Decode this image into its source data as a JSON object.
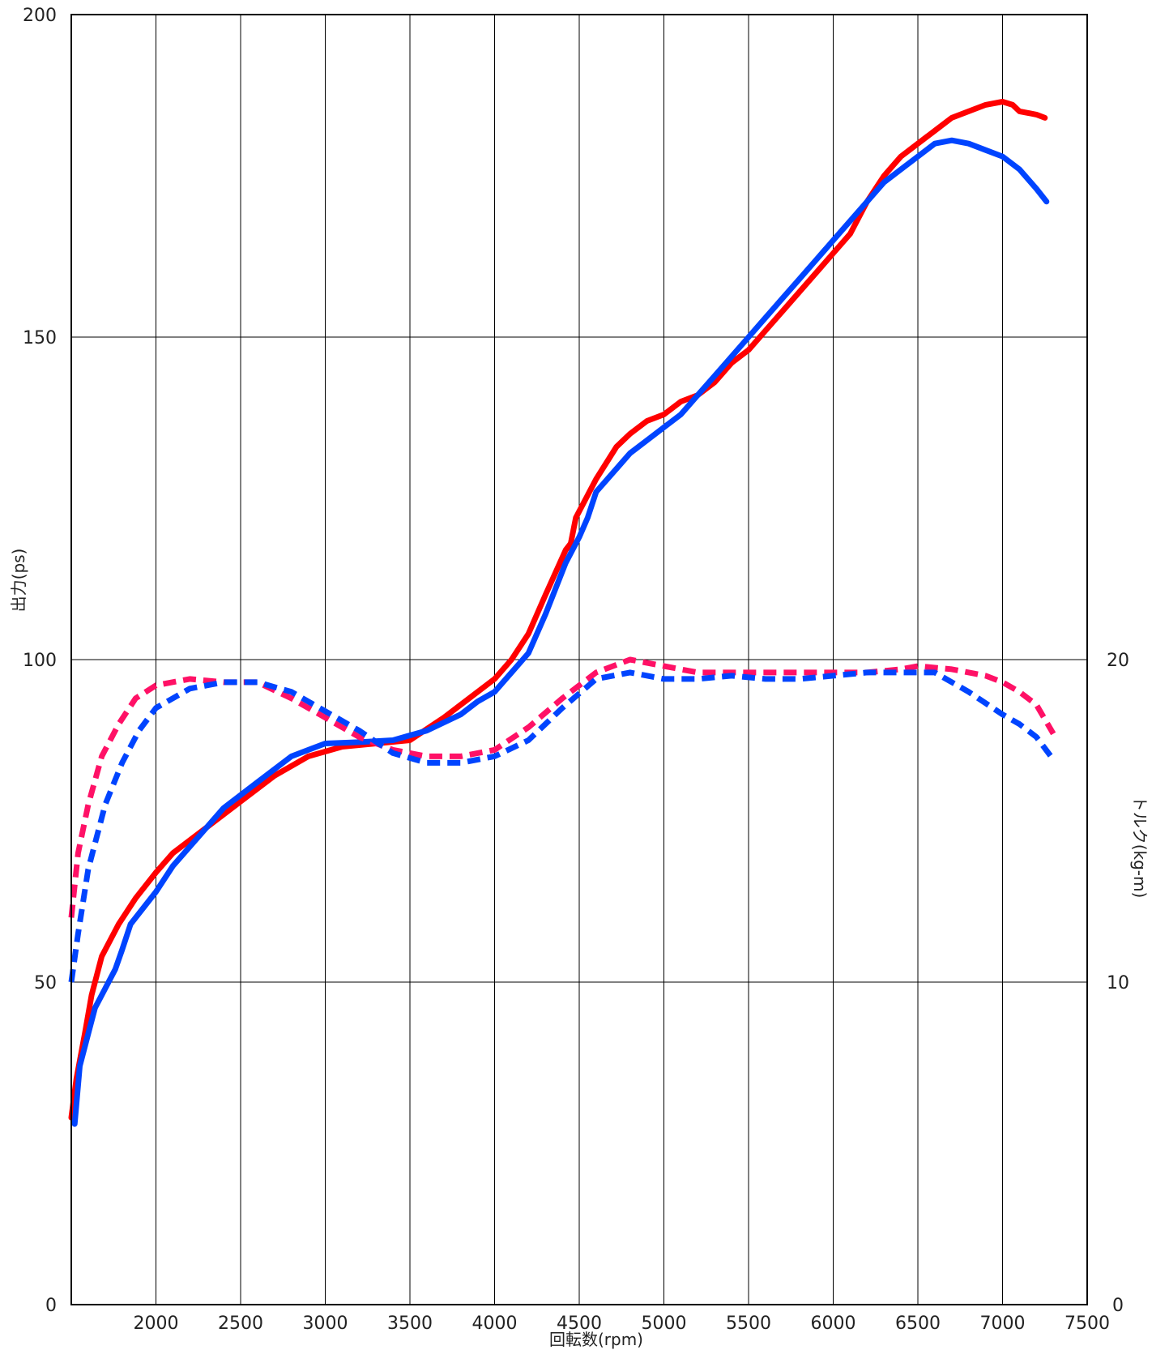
{
  "chart_data": {
    "type": "line",
    "xlabel": "回転数(rpm)",
    "ylabel_left": "出力(ps)",
    "ylabel_right": "トルク(kg-m)",
    "xlim": [
      1500,
      7500
    ],
    "ylim_left": [
      0,
      200
    ],
    "ylim_right": [
      0,
      40
    ],
    "x_ticks": [
      "2000",
      "2500",
      "3000",
      "3500",
      "4000",
      "4500",
      "5000",
      "5500",
      "6000",
      "6500",
      "7000",
      "7500"
    ],
    "y_left_ticks": [
      "0",
      "50",
      "100",
      "150",
      "200"
    ],
    "y_right_ticks": [
      "0",
      "10",
      "20"
    ],
    "grid": true,
    "series": [
      {
        "axis": "left",
        "style": "solid",
        "color": "#ff0000",
        "points": [
          [
            1500,
            29
          ],
          [
            1530,
            35
          ],
          [
            1580,
            42
          ],
          [
            1620,
            48
          ],
          [
            1680,
            54
          ],
          [
            1780,
            59
          ],
          [
            1880,
            63
          ],
          [
            2000,
            67
          ],
          [
            2100,
            70
          ],
          [
            2300,
            74
          ],
          [
            2500,
            78
          ],
          [
            2700,
            82
          ],
          [
            2900,
            85
          ],
          [
            3100,
            86.5
          ],
          [
            3300,
            87
          ],
          [
            3500,
            87.5
          ],
          [
            3700,
            91
          ],
          [
            3850,
            94
          ],
          [
            4000,
            97
          ],
          [
            4100,
            100
          ],
          [
            4200,
            104
          ],
          [
            4300,
            110
          ],
          [
            4420,
            117
          ],
          [
            4450,
            118
          ],
          [
            4480,
            122
          ],
          [
            4600,
            128
          ],
          [
            4720,
            133
          ],
          [
            4800,
            135
          ],
          [
            4900,
            137
          ],
          [
            5000,
            138
          ],
          [
            5100,
            140
          ],
          [
            5200,
            141
          ],
          [
            5300,
            143
          ],
          [
            5400,
            146
          ],
          [
            5500,
            148
          ],
          [
            5600,
            151
          ],
          [
            5700,
            154
          ],
          [
            5800,
            157
          ],
          [
            5900,
            160
          ],
          [
            6000,
            163
          ],
          [
            6100,
            166
          ],
          [
            6200,
            171
          ],
          [
            6300,
            175
          ],
          [
            6400,
            178
          ],
          [
            6500,
            180
          ],
          [
            6600,
            182
          ],
          [
            6700,
            184
          ],
          [
            6800,
            185
          ],
          [
            6900,
            186
          ],
          [
            7000,
            186.5
          ],
          [
            7060,
            186
          ],
          [
            7100,
            185
          ],
          [
            7200,
            184.5
          ],
          [
            7250,
            184
          ]
        ]
      },
      {
        "axis": "left",
        "style": "solid",
        "color": "#0044ff",
        "points": [
          [
            1520,
            28
          ],
          [
            1550,
            37
          ],
          [
            1600,
            42
          ],
          [
            1640,
            46
          ],
          [
            1700,
            49
          ],
          [
            1760,
            52
          ],
          [
            1800,
            55
          ],
          [
            1850,
            59
          ],
          [
            2000,
            64
          ],
          [
            2100,
            68
          ],
          [
            2200,
            71
          ],
          [
            2300,
            74
          ],
          [
            2400,
            77
          ],
          [
            2600,
            81
          ],
          [
            2800,
            85
          ],
          [
            3000,
            87
          ],
          [
            3200,
            87.2
          ],
          [
            3400,
            87.5
          ],
          [
            3600,
            89
          ],
          [
            3800,
            91.5
          ],
          [
            3900,
            93.5
          ],
          [
            4000,
            95
          ],
          [
            4100,
            98
          ],
          [
            4200,
            101
          ],
          [
            4300,
            107
          ],
          [
            4420,
            115
          ],
          [
            4500,
            119
          ],
          [
            4550,
            122
          ],
          [
            4600,
            126
          ],
          [
            4700,
            129
          ],
          [
            4800,
            132
          ],
          [
            4900,
            134
          ],
          [
            5000,
            136
          ],
          [
            5100,
            138
          ],
          [
            5200,
            141
          ],
          [
            5300,
            144
          ],
          [
            5400,
            147
          ],
          [
            5500,
            150
          ],
          [
            5600,
            153
          ],
          [
            5700,
            156
          ],
          [
            5800,
            159
          ],
          [
            5900,
            162
          ],
          [
            6000,
            165
          ],
          [
            6100,
            168
          ],
          [
            6200,
            171
          ],
          [
            6300,
            174
          ],
          [
            6400,
            176
          ],
          [
            6500,
            178
          ],
          [
            6600,
            180
          ],
          [
            6700,
            180.5
          ],
          [
            6800,
            180
          ],
          [
            6900,
            179
          ],
          [
            7000,
            178
          ],
          [
            7100,
            176
          ],
          [
            7200,
            173
          ],
          [
            7260,
            171
          ]
        ]
      },
      {
        "axis": "right",
        "style": "dashed",
        "color": "#ff1166",
        "points": [
          [
            1500,
            12
          ],
          [
            1540,
            14
          ],
          [
            1600,
            15.5
          ],
          [
            1680,
            17
          ],
          [
            1780,
            18
          ],
          [
            1880,
            18.8
          ],
          [
            2000,
            19.2
          ],
          [
            2200,
            19.4
          ],
          [
            2400,
            19.3
          ],
          [
            2600,
            19.3
          ],
          [
            2800,
            18.8
          ],
          [
            3000,
            18.2
          ],
          [
            3200,
            17.6
          ],
          [
            3400,
            17.2
          ],
          [
            3600,
            17
          ],
          [
            3800,
            17
          ],
          [
            4000,
            17.2
          ],
          [
            4200,
            17.9
          ],
          [
            4400,
            18.8
          ],
          [
            4600,
            19.6
          ],
          [
            4800,
            20
          ],
          [
            5000,
            19.8
          ],
          [
            5200,
            19.6
          ],
          [
            5400,
            19.6
          ],
          [
            5600,
            19.6
          ],
          [
            5800,
            19.6
          ],
          [
            6000,
            19.6
          ],
          [
            6200,
            19.6
          ],
          [
            6400,
            19.7
          ],
          [
            6500,
            19.8
          ],
          [
            6700,
            19.7
          ],
          [
            6900,
            19.5
          ],
          [
            7000,
            19.3
          ],
          [
            7100,
            19
          ],
          [
            7200,
            18.6
          ],
          [
            7300,
            17.7
          ]
        ]
      },
      {
        "axis": "right",
        "style": "dashed",
        "color": "#0044ff",
        "points": [
          [
            1500,
            10
          ],
          [
            1540,
            11.5
          ],
          [
            1600,
            13.5
          ],
          [
            1700,
            15.5
          ],
          [
            1800,
            16.8
          ],
          [
            1900,
            17.8
          ],
          [
            2000,
            18.5
          ],
          [
            2200,
            19.1
          ],
          [
            2400,
            19.3
          ],
          [
            2600,
            19.3
          ],
          [
            2800,
            19
          ],
          [
            3000,
            18.4
          ],
          [
            3200,
            17.8
          ],
          [
            3400,
            17.1
          ],
          [
            3600,
            16.8
          ],
          [
            3800,
            16.8
          ],
          [
            4000,
            17
          ],
          [
            4200,
            17.5
          ],
          [
            4400,
            18.5
          ],
          [
            4600,
            19.4
          ],
          [
            4800,
            19.6
          ],
          [
            5000,
            19.4
          ],
          [
            5200,
            19.4
          ],
          [
            5400,
            19.5
          ],
          [
            5600,
            19.4
          ],
          [
            5800,
            19.4
          ],
          [
            6000,
            19.5
          ],
          [
            6200,
            19.6
          ],
          [
            6400,
            19.6
          ],
          [
            6600,
            19.6
          ],
          [
            6800,
            19
          ],
          [
            7000,
            18.3
          ],
          [
            7100,
            18
          ],
          [
            7200,
            17.6
          ],
          [
            7300,
            16.9
          ]
        ]
      }
    ]
  }
}
